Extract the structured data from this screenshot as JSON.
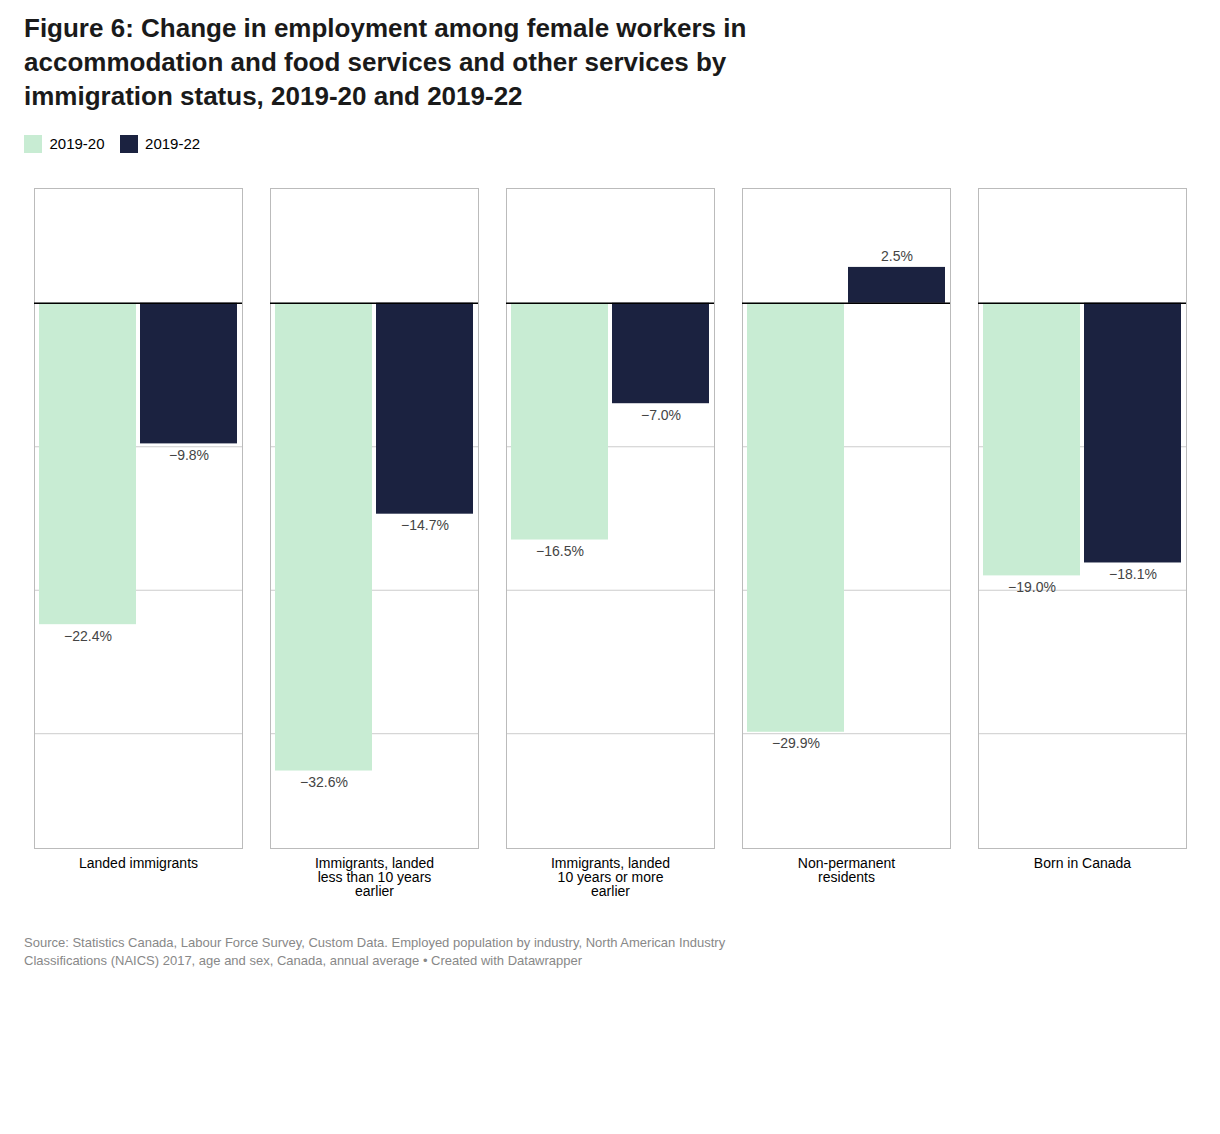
{
  "chart_data": {
    "type": "bar",
    "title": "Figure 6: Change in employment among female workers in\naccommodation and food services and other services by\nimmigration status, 2019-20 and 2019-22",
    "categories": [
      "Landed immigrants",
      "Immigrants, landed\nless than 10 years\nearlier",
      "Immigrants, landed\n10 years or more\nearlier",
      "Non-permanent\nresidents",
      "Born in Canada"
    ],
    "series": [
      {
        "name": "2019-20",
        "color": "#c8ecd3",
        "values": [
          -22.4,
          -32.6,
          -16.5,
          -29.9,
          -19.0
        ],
        "value_labels": [
          "−22.4%",
          "−32.6%",
          "−16.5%",
          "−29.9%",
          "−19.0%"
        ]
      },
      {
        "name": "2019-22",
        "color": "#1b2240",
        "values": [
          -9.8,
          -14.7,
          -7.0,
          2.5,
          -18.1
        ],
        "value_labels": [
          "−9.8%",
          "−14.7%",
          "−7.0%",
          "2.5%",
          "−18.1%"
        ]
      }
    ],
    "ylim": [
      -38,
      8
    ],
    "yticks": [
      -30,
      -20,
      -10,
      0
    ],
    "grid": true,
    "legend": "upper left",
    "data_labels": true,
    "tick_labels": "x",
    "caption": "Source: Statistics Canada, Labour Force Survey, Custom Data. Employed population by industry, North American Industry\nClassifications (NAICS) 2017, age and sex, Canada, annual average • Created with Datawrapper"
  }
}
